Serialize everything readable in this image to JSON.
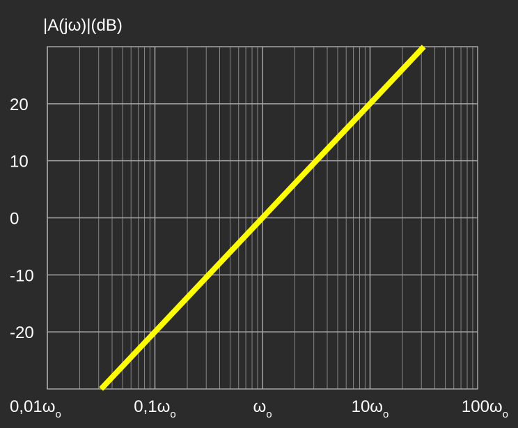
{
  "chart_data": {
    "type": "line",
    "title": "",
    "ylabel": "|A(jω)|(dB)",
    "xlabel": "",
    "x_scale": "log",
    "xlim": [
      0.01,
      100
    ],
    "ylim": [
      -30,
      30
    ],
    "grid": true,
    "x_ticks": [
      {
        "value": 0.01,
        "main": "0,01ω",
        "sub": "o"
      },
      {
        "value": 0.1,
        "main": "0,1ω",
        "sub": "o"
      },
      {
        "value": 1,
        "main": "ω",
        "sub": "o"
      },
      {
        "value": 10,
        "main": "10ω",
        "sub": "o"
      },
      {
        "value": 100,
        "main": "100ω",
        "sub": "o"
      }
    ],
    "y_ticks": [
      {
        "value": 20,
        "label": "20"
      },
      {
        "value": 10,
        "label": "10"
      },
      {
        "value": 0,
        "label": "0"
      },
      {
        "value": -10,
        "label": "-10"
      },
      {
        "value": -20,
        "label": "-20"
      }
    ],
    "series": [
      {
        "color": "#ffff00",
        "x": [
          0.0316,
          31.6
        ],
        "y": [
          -30,
          30
        ]
      }
    ],
    "colors": {
      "background": "#2b2b2b",
      "grid": "#a6a6a6",
      "text": "#ffffff"
    }
  }
}
